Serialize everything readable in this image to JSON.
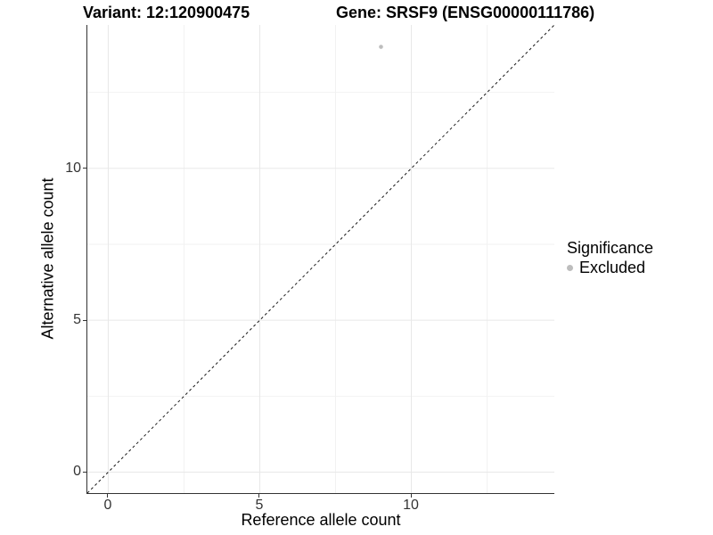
{
  "header": {
    "variant_title": "Variant: 12:120900475",
    "gene_title": "Gene: SRSF9 (ENSG00000111786)"
  },
  "chart_data": {
    "type": "scatter",
    "titles": {
      "left": "Variant: 12:120900475",
      "right": "Gene: SRSF9 (ENSG00000111786)"
    },
    "xlabel": "Reference allele count",
    "ylabel": "Alternative allele count",
    "xlim": [
      -0.69,
      14.72
    ],
    "ylim": [
      -0.69,
      14.72
    ],
    "x_ticks": {
      "values": [
        0,
        5,
        10
      ],
      "labels": [
        "0",
        "5",
        "10"
      ]
    },
    "y_ticks": {
      "values": [
        0,
        5,
        10
      ],
      "labels": [
        "0",
        "5",
        "10"
      ]
    },
    "x_minor_gridlines": [
      2.5,
      7.5,
      12.5
    ],
    "y_minor_gridlines": [
      2.5,
      7.5,
      12.5
    ],
    "grid": "major and minor, light gray on white panel",
    "identity_line": {
      "type": "abline",
      "slope": 1,
      "intercept": 0,
      "style": "dashed",
      "color": "#1a1a1a"
    },
    "series": [
      {
        "name": "Excluded",
        "color": "#bdbdbd",
        "marker": "circle",
        "points": [
          {
            "x": 9,
            "y": 14
          }
        ]
      }
    ],
    "legend": {
      "position": "right",
      "title": "Significance",
      "entries": [
        {
          "label": "Excluded",
          "color": "#bdbdbd",
          "marker": "circle"
        }
      ]
    }
  },
  "colors": {
    "background": "#ffffff",
    "axis_line": "#333333",
    "tick_mark": "#333333",
    "tick_label": "#333333",
    "grid_major": "#e8e8e8",
    "grid_minor": "#f2f2f2",
    "point": "#bdbdbd",
    "identity_line": "#1a1a1a",
    "text": "#000000"
  }
}
